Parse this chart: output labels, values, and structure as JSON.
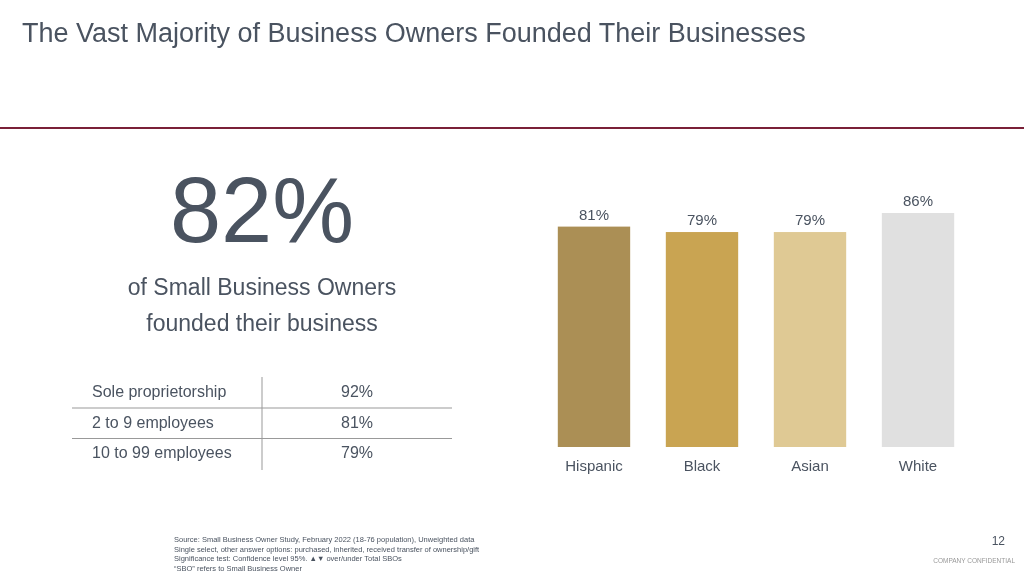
{
  "chart_data": [
    {
      "type": "other",
      "title": "The Vast Majority of Business Owners Founded Their Businesses",
      "subtitle": "82%",
      "xlabel": "of Small Business Owners founded their business",
      "categories": [
        "Sole proprietorship",
        "2 to 9 employees",
        "10 to 99 employees"
      ],
      "value_labels": [
        "92%",
        "81%",
        "79%"
      ],
      "annotations": [
        "Source:  Small Business Owner Study, February 2022 (18-76 population), Unweighted data",
        "Single select, other answer options: purchased, inherited, received transfer of ownership/gift",
        "Significance test: Confidence level 95%. ▲▼ over/under Total SBOs",
        "“SBO” refers to Small Business Owner",
        "12",
        "COMPANY  CONFIDENTIAL"
      ]
    },
    {
      "type": "bar",
      "categories": [
        "Hispanic",
        "Black",
        "Asian",
        "White"
      ],
      "values": [
        81,
        79,
        79,
        86
      ],
      "value_labels": [
        "81%",
        "79%",
        "79%",
        "86%"
      ],
      "colors": [
        "#ab8f55",
        "#c9a452",
        "#dfc994",
        "#e0e0e0"
      ]
    }
  ]
}
